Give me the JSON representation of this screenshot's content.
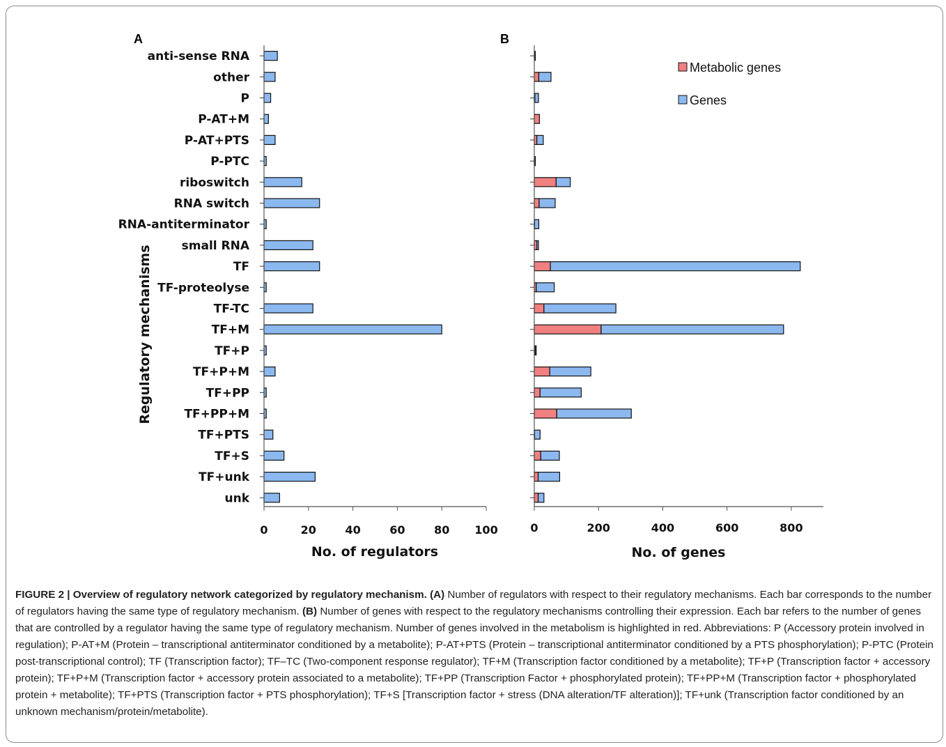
{
  "chart_data": [
    {
      "panel": "A",
      "type": "bar",
      "orientation": "horizontal",
      "categories": [
        "anti-sense RNA",
        "other",
        "P",
        "P-AT+M",
        "P-AT+PTS",
        "P-PTC",
        "riboswitch",
        "RNA switch",
        "RNA-antiterminator",
        "small RNA",
        "TF",
        "TF-proteolyse",
        "TF-TC",
        "TF+M",
        "TF+P",
        "TF+P+M",
        "TF+PP",
        "TF+PP+M",
        "TF+PTS",
        "TF+S",
        "TF+unk",
        "unk"
      ],
      "values": [
        6,
        5,
        3,
        2,
        5,
        1,
        17,
        25,
        1,
        22,
        25,
        1,
        22,
        80,
        1,
        5,
        1,
        1,
        4,
        9,
        23,
        7
      ],
      "xlabel": "No. of regulators",
      "ylabel": "Regulatory mechanisms",
      "xlim": [
        0,
        100
      ],
      "xticks": [
        "0",
        "20",
        "40",
        "60",
        "80",
        "100"
      ],
      "grid": false,
      "color": "#8cb8f0"
    },
    {
      "panel": "B",
      "type": "bar",
      "orientation": "horizontal",
      "stacked": true,
      "categories": [
        "anti-sense RNA",
        "other",
        "P",
        "P-AT+M",
        "P-AT+PTS",
        "P-PTC",
        "riboswitch",
        "RNA switch",
        "RNA-antiterminator",
        "small RNA",
        "TF",
        "TF-proteolyse",
        "TF-TC",
        "TF+M",
        "TF+P",
        "TF+P+M",
        "TF+PP",
        "TF+PP+M",
        "TF+PTS",
        "TF+S",
        "TF+unk",
        "unk"
      ],
      "series": [
        {
          "name": "Metabolic genes",
          "color": "#f08080",
          "values": [
            1,
            14,
            2,
            16,
            8,
            1,
            68,
            15,
            1,
            8,
            50,
            6,
            30,
            208,
            3,
            48,
            18,
            70,
            1,
            20,
            12,
            12
          ]
        },
        {
          "name": "Genes",
          "color": "#8cb8f0",
          "values": [
            1,
            38,
            11,
            0,
            20,
            1,
            44,
            50,
            13,
            5,
            778,
            56,
            224,
            568,
            3,
            128,
            128,
            232,
            17,
            58,
            67,
            18
          ]
        }
      ],
      "xlabel": "No. of genes",
      "xlim": [
        0,
        900
      ],
      "xticks": [
        "0",
        "200",
        "400",
        "600",
        "800"
      ],
      "legend_position": "top-right",
      "grid": false
    }
  ],
  "panel_labels": {
    "a": "A",
    "b": "B"
  },
  "caption": {
    "figure_label": "FIGURE 2 | Overview of regulatory network categorized by regulatory mechanism.",
    "a_marker": "(A)",
    "a_text": "Number of regulators with respect to their regulatory mechanisms. Each bar corresponds to the number of regulators having the same type of regulatory mechanism.",
    "b_marker": "(B)",
    "b_text": "Number of genes with respect to the regulatory mechanisms controlling their expression. Each bar refers to the number of genes that are controlled by a regulator having the same type of regulatory mechanism. Number of genes involved in the metabolism is highlighted in red. Abbreviations: P (Accessory protein involved in regulation); P-AT+M (Protein – transcriptional antiterminator conditioned by a metabolite); P-AT+PTS (Protein – transcriptional antiterminator conditioned by a PTS phosphorylation); P-PTC (Protein post-transcriptional control); TF (Transcription factor); TF–TC (Two-component response regulator); TF+M (Transcription factor conditioned by a metabolite); TF+P (Transcription factor + accessory protein); TF+P+M (Transcription factor + accessory protein associated to a metabolite); TF+PP (Transcription Factor + phosphorylated protein); TF+PP+M (Transcription factor + phosphorylated protein + metabolite); TF+PTS (Transcription factor + PTS phosphorylation); TF+S [Transcription factor + stress (DNA alteration/TF alteration)]; TF+unk (Transcription factor conditioned by an unknown mechanism/protein/metabolite)."
  }
}
